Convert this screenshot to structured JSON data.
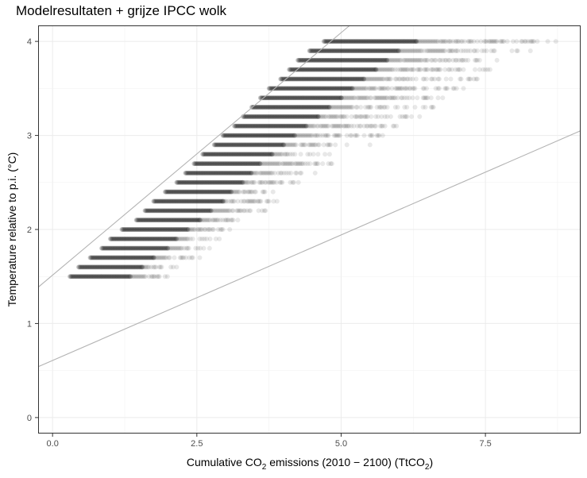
{
  "chart_data": {
    "type": "scatter",
    "title": "Modelresultaten + grijze IPCC wolk",
    "xlabel": {
      "pre": "Cumulative CO",
      "sub": "2",
      "mid": " emissions (2010 − 2100) (TtCO",
      "sub2": "2",
      "post": ")"
    },
    "ylabel": "Temperature relative to p.i. (°C)",
    "xlim": [
      -0.25,
      9.15
    ],
    "ylim": [
      -0.17,
      4.17
    ],
    "xticks": [
      0.0,
      2.5,
      5.0,
      7.5
    ],
    "xtick_labels": [
      "0.0",
      "2.5",
      "5.0",
      "7.5"
    ],
    "yticks": [
      0,
      1,
      2,
      3,
      4
    ],
    "ytick_labels": [
      "0",
      "1",
      "2",
      "3",
      "4"
    ],
    "grid": true,
    "point_color": "#000000",
    "point_opacity": 0.09,
    "line_color": "#b3b3b3",
    "series": [
      {
        "y": 1.5,
        "dense": [
          0.3,
          1.35
        ],
        "tail_end": 2.0
      },
      {
        "y": 1.6,
        "dense": [
          0.45,
          1.55
        ],
        "tail_end": 2.25
      },
      {
        "y": 1.7,
        "dense": [
          0.65,
          1.75
        ],
        "tail_end": 2.55
      },
      {
        "y": 1.8,
        "dense": [
          0.85,
          2.0
        ],
        "tail_end": 2.75
      },
      {
        "y": 1.9,
        "dense": [
          1.0,
          2.15
        ],
        "tail_end": 2.95
      },
      {
        "y": 2.0,
        "dense": [
          1.2,
          2.35
        ],
        "tail_end": 3.1
      },
      {
        "y": 2.1,
        "dense": [
          1.45,
          2.55
        ],
        "tail_end": 3.35
      },
      {
        "y": 2.2,
        "dense": [
          1.6,
          2.75
        ],
        "tail_end": 3.75
      },
      {
        "y": 2.3,
        "dense": [
          1.75,
          2.95
        ],
        "tail_end": 3.95
      },
      {
        "y": 2.4,
        "dense": [
          1.95,
          3.1
        ],
        "tail_end": 4.0
      },
      {
        "y": 2.5,
        "dense": [
          2.15,
          3.3
        ],
        "tail_end": 4.3
      },
      {
        "y": 2.6,
        "dense": [
          2.3,
          3.45
        ],
        "tail_end": 4.6
      },
      {
        "y": 2.7,
        "dense": [
          2.45,
          3.6
        ],
        "tail_end": 4.9
      },
      {
        "y": 2.8,
        "dense": [
          2.6,
          3.8
        ],
        "tail_end": 4.85
      },
      {
        "y": 2.9,
        "dense": [
          2.8,
          4.0
        ],
        "tail_end": 5.5
      },
      {
        "y": 3.0,
        "dense": [
          2.95,
          4.2
        ],
        "tail_end": 5.8
      },
      {
        "y": 3.1,
        "dense": [
          3.15,
          4.4
        ],
        "tail_end": 6.2
      },
      {
        "y": 3.2,
        "dense": [
          3.3,
          4.6
        ],
        "tail_end": 6.4
      },
      {
        "y": 3.3,
        "dense": [
          3.45,
          4.8
        ],
        "tail_end": 6.6
      },
      {
        "y": 3.4,
        "dense": [
          3.6,
          5.0
        ],
        "tail_end": 6.9
      },
      {
        "y": 3.5,
        "dense": [
          3.75,
          5.2
        ],
        "tail_end": 7.2
      },
      {
        "y": 3.6,
        "dense": [
          3.95,
          5.4
        ],
        "tail_end": 7.45
      },
      {
        "y": 3.7,
        "dense": [
          4.1,
          5.6
        ],
        "tail_end": 7.8
      },
      {
        "y": 3.8,
        "dense": [
          4.25,
          5.8
        ],
        "tail_end": 7.95
      },
      {
        "y": 3.9,
        "dense": [
          4.45,
          6.0
        ],
        "tail_end": 8.3
      },
      {
        "y": 4.0,
        "dense": [
          4.7,
          6.3
        ],
        "tail_end": 8.8
      }
    ],
    "reference_lines": [
      {
        "x1": -0.25,
        "y1": 1.385,
        "x2": 5.15,
        "y2": 4.17
      },
      {
        "x1": -0.25,
        "y1": 0.54,
        "x2": 9.15,
        "y2": 3.05
      }
    ]
  }
}
